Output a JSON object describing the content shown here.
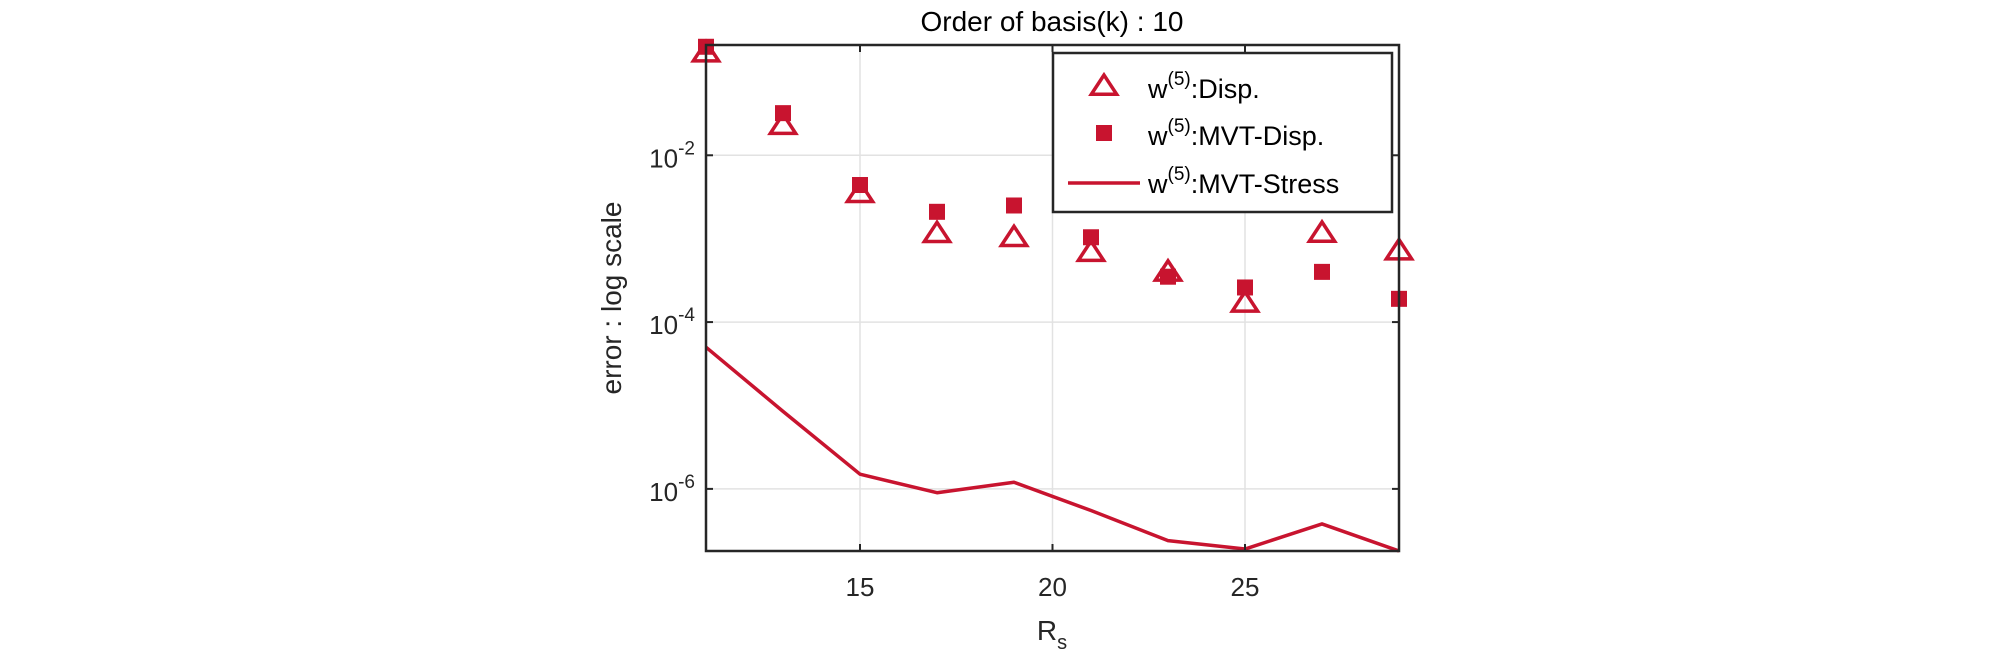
{
  "chart_data": {
    "type": "scatter",
    "title": "Order of basis(k) : 10",
    "xlabel": "R",
    "xlabel_subscript": "s",
    "ylabel": "error : log scale",
    "yscale": "log",
    "xlim": [
      11,
      29
    ],
    "ylim": [
      1.8e-07,
      0.21
    ],
    "grid": true,
    "legend_position": "upper right",
    "x_ticks": [
      15,
      20,
      25
    ],
    "x_tick_labels": [
      "15",
      "20",
      "25"
    ],
    "y_ticks": [
      0.01,
      0.0001,
      1e-06
    ],
    "y_tick_labels": [
      {
        "base": "10",
        "exp": "-2"
      },
      {
        "base": "10",
        "exp": "-4"
      },
      {
        "base": "10",
        "exp": "-6"
      }
    ],
    "x": [
      11,
      13,
      15,
      17,
      19,
      21,
      23,
      25,
      27,
      29
    ],
    "series": [
      {
        "name": "w(5):Disp.",
        "label_base": "w",
        "label_sup": "(5)",
        "label_rest": ":Disp.",
        "marker": "triangle-open",
        "color": "#C8142F",
        "values": [
          0.17,
          0.023,
          0.0035,
          0.00116,
          0.00104,
          0.00069,
          0.0004,
          0.00017,
          0.00117,
          0.00072
        ]
      },
      {
        "name": "w(5):MVT-Disp.",
        "label_base": "w",
        "label_sup": "(5)",
        "label_rest": ":MVT-Disp.",
        "marker": "square-filled",
        "color": "#C8142F",
        "values": [
          0.2,
          0.032,
          0.0044,
          0.0021,
          0.0025,
          0.00104,
          0.00035,
          0.00026,
          0.0004,
          0.00019
        ]
      },
      {
        "name": "w(5):MVT-Stress",
        "label_base": "w",
        "label_sup": "(5)",
        "label_rest": ":MVT-Stress",
        "marker": "line",
        "color": "#C8142F",
        "values": [
          5e-05,
          8.5e-06,
          1.5e-06,
          9e-07,
          1.2e-06,
          5.5e-07,
          2.4e-07,
          1.9e-07,
          3.8e-07,
          1.8e-07
        ]
      }
    ]
  }
}
